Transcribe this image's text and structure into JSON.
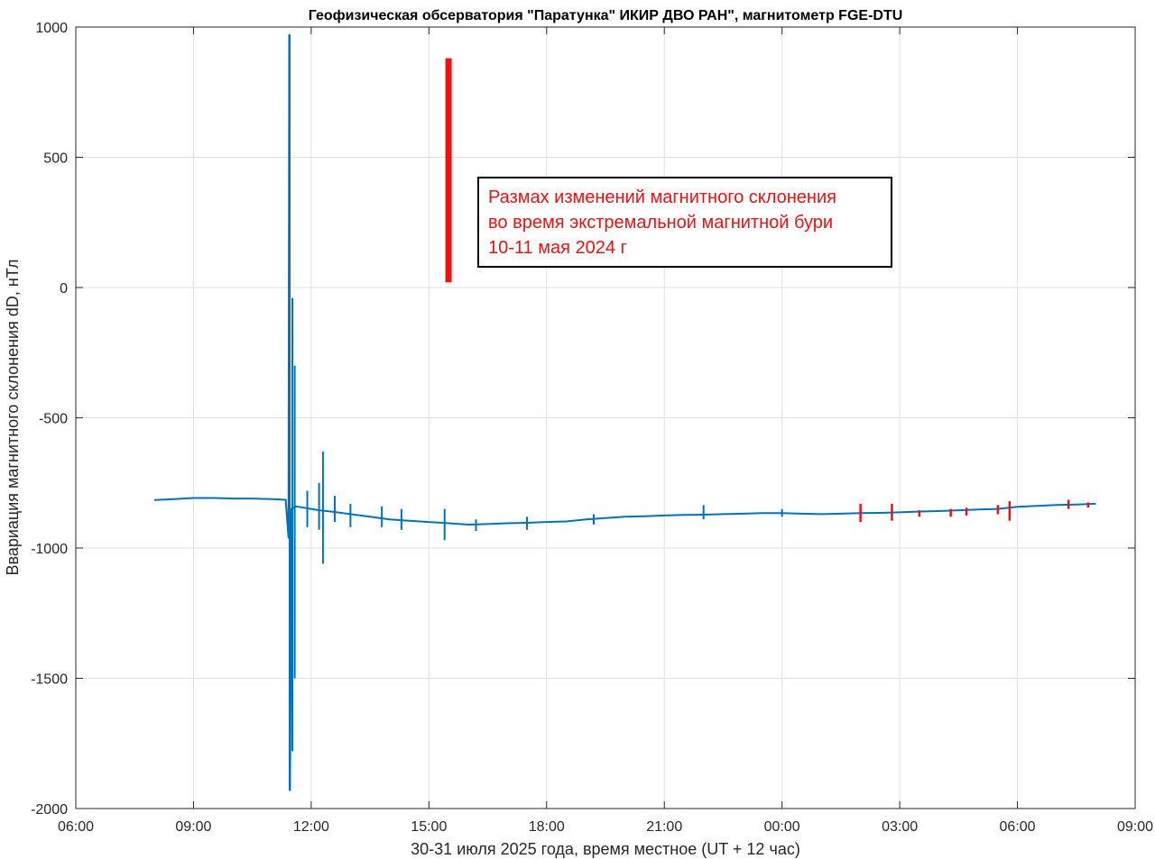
{
  "chart_data": {
    "type": "line",
    "title": "Геофизическая обсерватория \"Паратунка\" ИКИР ДВО РАН\", магнитометр FGE-DTU",
    "xlabel": "30-31 июля 2025 года, время местное (UT + 12 час)",
    "ylabel": "Ввариация магнитного склонения dD, нТл",
    "xlim": [
      6,
      33
    ],
    "ylim": [
      -2000,
      1000
    ],
    "x_ticks": [
      6,
      9,
      12,
      15,
      18,
      21,
      24,
      27,
      30,
      33
    ],
    "x_tick_labels": [
      "06:00",
      "09:00",
      "12:00",
      "15:00",
      "18:00",
      "21:00",
      "00:00",
      "03:00",
      "06:00",
      "09:00"
    ],
    "y_ticks": [
      1000,
      500,
      0,
      -500,
      -1000,
      -1500,
      -2000
    ],
    "y_tick_labels": [
      "1000",
      "500",
      "0",
      "-500",
      "-1000",
      "-1500",
      "-2000"
    ],
    "grid": true,
    "colors": {
      "series": "#0072bd",
      "highlight": "#ee1111"
    },
    "series": [
      {
        "x": [
          8.0,
          8.5,
          9.0,
          9.5,
          10.0,
          10.5,
          11.0,
          11.35,
          11.42,
          11.44,
          11.46,
          11.5,
          11.6,
          11.8,
          12.0,
          12.2,
          12.5,
          13.0,
          13.5,
          14.0,
          14.5,
          15.0,
          15.5,
          16.0,
          16.5,
          17.0,
          17.5,
          18.0,
          18.5,
          19.0,
          19.5,
          20.0,
          20.5,
          21.0,
          21.5,
          22.0,
          22.5,
          23.0,
          23.5,
          24.0,
          24.5,
          25.0,
          25.5,
          26.0,
          26.5,
          27.0,
          27.5,
          28.0,
          28.5,
          29.0,
          29.5,
          30.0,
          30.5,
          31.0,
          31.5,
          32.0
        ],
        "y": [
          -816,
          -812,
          -808,
          -808,
          -810,
          -810,
          -812,
          -815,
          -960,
          970,
          -1930,
          -850,
          -840,
          -845,
          -850,
          -855,
          -860,
          -870,
          -880,
          -890,
          -895,
          -900,
          -905,
          -910,
          -908,
          -905,
          -903,
          -900,
          -898,
          -890,
          -885,
          -880,
          -878,
          -875,
          -873,
          -872,
          -870,
          -868,
          -866,
          -866,
          -868,
          -870,
          -868,
          -866,
          -865,
          -863,
          -860,
          -858,
          -855,
          -852,
          -850,
          -842,
          -838,
          -835,
          -833,
          -830
        ]
      }
    ],
    "spikes": [
      {
        "x": 11.45,
        "y_min": -1930,
        "y_max": 970
      },
      {
        "x": 11.52,
        "y_min": -1780,
        "y_max": -40
      },
      {
        "x": 11.58,
        "y_min": -1500,
        "y_max": -300
      },
      {
        "x": 11.9,
        "y_min": -920,
        "y_max": -780
      },
      {
        "x": 12.2,
        "y_min": -930,
        "y_max": -750
      },
      {
        "x": 12.3,
        "y_min": -1060,
        "y_max": -630
      },
      {
        "x": 12.6,
        "y_min": -900,
        "y_max": -800
      },
      {
        "x": 13.0,
        "y_min": -920,
        "y_max": -830
      },
      {
        "x": 13.8,
        "y_min": -920,
        "y_max": -840
      },
      {
        "x": 14.3,
        "y_min": -930,
        "y_max": -850
      },
      {
        "x": 15.4,
        "y_min": -970,
        "y_max": -850
      },
      {
        "x": 16.2,
        "y_min": -935,
        "y_max": -890
      },
      {
        "x": 17.5,
        "y_min": -930,
        "y_max": -880
      },
      {
        "x": 19.2,
        "y_min": -910,
        "y_max": -870
      },
      {
        "x": 22.0,
        "y_min": -890,
        "y_max": -835
      },
      {
        "x": 24.0,
        "y_min": -880,
        "y_max": -850
      }
    ],
    "red_range_bar": {
      "x": 15.5,
      "y_min": 20,
      "y_max": 880
    },
    "red_markers": [
      {
        "x": 26.0,
        "y_min": -900,
        "y_max": -830
      },
      {
        "x": 26.8,
        "y_min": -895,
        "y_max": -830
      },
      {
        "x": 27.5,
        "y_min": -880,
        "y_max": -855
      },
      {
        "x": 28.3,
        "y_min": -880,
        "y_max": -850
      },
      {
        "x": 28.7,
        "y_min": -875,
        "y_max": -845
      },
      {
        "x": 29.5,
        "y_min": -870,
        "y_max": -835
      },
      {
        "x": 29.8,
        "y_min": -895,
        "y_max": -820
      },
      {
        "x": 31.3,
        "y_min": -850,
        "y_max": -815
      },
      {
        "x": 31.8,
        "y_min": -845,
        "y_max": -825
      }
    ],
    "annotation": {
      "lines": [
        "Размах изменений магнитного склонения",
        "во время экстремальной магнитной бури",
        "10-11 мая 2024 г"
      ]
    }
  }
}
